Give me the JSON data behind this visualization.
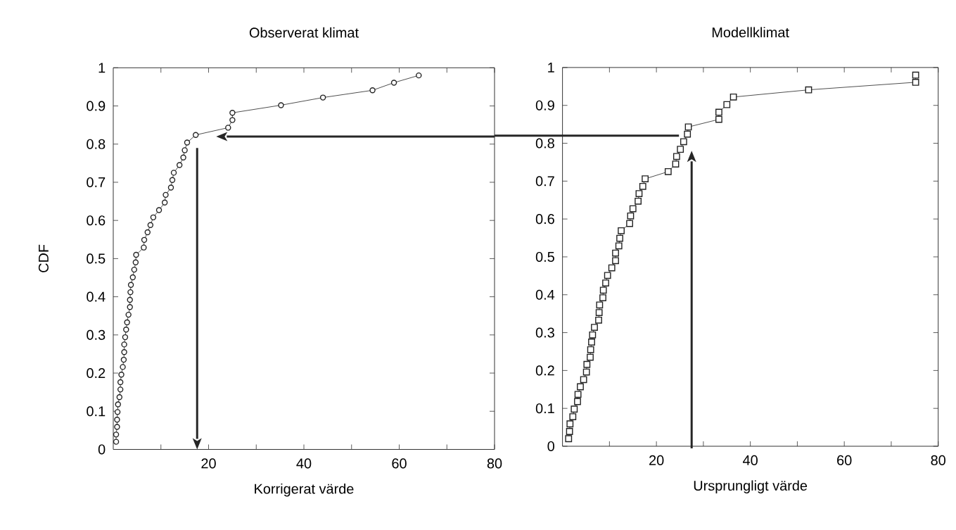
{
  "chart_data": [
    {
      "type": "line",
      "title": "Observerat klimat",
      "xlabel": "Korrigerat värde",
      "ylabel": "CDF",
      "marker": "circle",
      "color": "#222222",
      "x": [
        0.6,
        0.6,
        0.8,
        0.8,
        0.9,
        1.0,
        1.3,
        1.5,
        1.5,
        1.7,
        2.0,
        2.2,
        2.3,
        2.3,
        2.5,
        2.7,
        2.9,
        3.2,
        3.5,
        3.5,
        3.6,
        3.7,
        4.1,
        4.4,
        4.7,
        4.8,
        6.4,
        6.5,
        7.2,
        7.8,
        8.4,
        9.6,
        10.8,
        11.0,
        12.1,
        12.4,
        12.7,
        13.9,
        14.7,
        15.0,
        15.5,
        17.3,
        24.1,
        25.0,
        25.0,
        35.2,
        44.0,
        54.4,
        58.9,
        64.1
      ],
      "values": [
        0.02,
        0.039,
        0.059,
        0.078,
        0.098,
        0.118,
        0.137,
        0.157,
        0.176,
        0.196,
        0.216,
        0.235,
        0.255,
        0.275,
        0.294,
        0.314,
        0.333,
        0.353,
        0.373,
        0.392,
        0.412,
        0.431,
        0.451,
        0.471,
        0.49,
        0.51,
        0.529,
        0.549,
        0.569,
        0.588,
        0.608,
        0.627,
        0.647,
        0.667,
        0.686,
        0.706,
        0.725,
        0.745,
        0.765,
        0.784,
        0.804,
        0.824,
        0.843,
        0.863,
        0.882,
        0.902,
        0.922,
        0.941,
        0.961,
        0.98
      ],
      "xlim": [
        0,
        80
      ],
      "xticks": [
        {
          "value": 10,
          "label": null
        },
        20,
        {
          "value": 30,
          "label": null
        },
        40,
        {
          "value": 50,
          "label": null
        },
        60,
        {
          "value": 70,
          "label": null
        },
        80
      ],
      "ylim": [
        0,
        1
      ],
      "yticks": [
        0,
        0.1,
        0.2,
        0.3,
        0.4,
        0.5,
        0.6,
        0.7,
        0.8,
        0.9,
        1
      ],
      "ref_lines": [
        {
          "axis": "y",
          "value": 0.82
        },
        {
          "axis": "x",
          "value": 17.6
        }
      ]
    },
    {
      "type": "line",
      "title": "Modellklimat",
      "xlabel": "Ursprungligt värde",
      "marker": "square",
      "color": "#222222",
      "x": [
        1.3,
        1.5,
        1.6,
        2.2,
        2.5,
        3.2,
        3.3,
        3.8,
        4.5,
        5.1,
        5.2,
        5.9,
        6.0,
        6.2,
        6.4,
        6.8,
        7.7,
        7.8,
        7.9,
        8.6,
        8.7,
        9.2,
        9.6,
        10.5,
        11.3,
        11.3,
        12.0,
        12.2,
        12.5,
        14.3,
        14.5,
        15.0,
        16.1,
        16.3,
        17.1,
        17.6,
        22.5,
        24.1,
        24.3,
        25.1,
        25.8,
        26.6,
        26.8,
        33.3,
        33.3,
        35.0,
        36.4,
        52.4,
        75.2,
        75.2
      ],
      "values": [
        0.02,
        0.039,
        0.059,
        0.078,
        0.098,
        0.118,
        0.137,
        0.157,
        0.176,
        0.196,
        0.216,
        0.235,
        0.255,
        0.275,
        0.294,
        0.314,
        0.333,
        0.353,
        0.373,
        0.392,
        0.412,
        0.431,
        0.451,
        0.471,
        0.49,
        0.51,
        0.529,
        0.549,
        0.569,
        0.588,
        0.608,
        0.627,
        0.647,
        0.667,
        0.686,
        0.706,
        0.725,
        0.745,
        0.765,
        0.784,
        0.804,
        0.824,
        0.843,
        0.863,
        0.882,
        0.902,
        0.922,
        0.941,
        0.961,
        0.98
      ],
      "xlim": [
        0,
        80
      ],
      "xticks": [
        {
          "value": 10,
          "label": null
        },
        20,
        {
          "value": 30,
          "label": null
        },
        40,
        {
          "value": 50,
          "label": null
        },
        60,
        {
          "value": 70,
          "label": null
        },
        80
      ],
      "ylim": [
        0,
        1
      ],
      "yticks": [
        0,
        0.1,
        0.2,
        0.3,
        0.4,
        0.5,
        0.6,
        0.7,
        0.8,
        0.9,
        1
      ],
      "ref_lines": [
        {
          "axis": "y",
          "value": 0.82
        },
        {
          "axis": "x",
          "value": 27.5
        }
      ]
    }
  ]
}
